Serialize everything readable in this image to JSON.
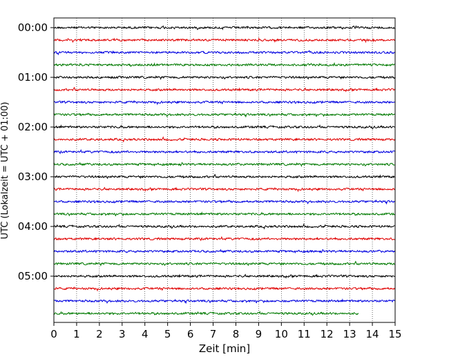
{
  "chart_data": {
    "type": "line",
    "title": "",
    "xlabel": "Zeit  [min]",
    "ylabel": "UTC (Lokalzeit = UTC + 01:00)",
    "xlim": [
      0,
      15
    ],
    "x_ticks": [
      "0",
      "1",
      "2",
      "3",
      "4",
      "5",
      "6",
      "7",
      "8",
      "9",
      "10",
      "11",
      "12",
      "13",
      "14",
      "15"
    ],
    "y_ticks": [
      {
        "label": "00:00",
        "row": 0
      },
      {
        "label": "01:00",
        "row": 4
      },
      {
        "label": "02:00",
        "row": 8
      },
      {
        "label": "03:00",
        "row": 12
      },
      {
        "label": "04:00",
        "row": 16
      },
      {
        "label": "05:00",
        "row": 20
      }
    ],
    "grid": "vertical dotted at each minute",
    "trace_interval_minutes": 15,
    "trace_colors": [
      "#000000",
      "#e00000",
      "#0000e0",
      "#007a00"
    ],
    "traces": [
      {
        "start": "00:00",
        "end_min": 15
      },
      {
        "start": "00:15",
        "end_min": 15
      },
      {
        "start": "00:30",
        "end_min": 15
      },
      {
        "start": "00:45",
        "end_min": 15
      },
      {
        "start": "01:00",
        "end_min": 15
      },
      {
        "start": "01:15",
        "end_min": 15
      },
      {
        "start": "01:30",
        "end_min": 15
      },
      {
        "start": "01:45",
        "end_min": 15
      },
      {
        "start": "02:00",
        "end_min": 15
      },
      {
        "start": "02:15",
        "end_min": 15
      },
      {
        "start": "02:30",
        "end_min": 15
      },
      {
        "start": "02:45",
        "end_min": 15
      },
      {
        "start": "03:00",
        "end_min": 15
      },
      {
        "start": "03:15",
        "end_min": 15
      },
      {
        "start": "03:30",
        "end_min": 15
      },
      {
        "start": "03:45",
        "end_min": 15
      },
      {
        "start": "04:00",
        "end_min": 15
      },
      {
        "start": "04:15",
        "end_min": 15
      },
      {
        "start": "04:30",
        "end_min": 15
      },
      {
        "start": "04:45",
        "end_min": 15
      },
      {
        "start": "05:00",
        "end_min": 15
      },
      {
        "start": "05:15",
        "end_min": 15
      },
      {
        "start": "05:30",
        "end_min": 15
      },
      {
        "start": "05:45",
        "end_min": 13.4
      }
    ]
  }
}
